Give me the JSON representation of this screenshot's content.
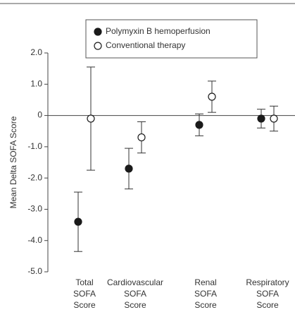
{
  "chart_data": {
    "type": "errorbar",
    "ylabel": "Mean Delta SOFA Score",
    "categories": [
      [
        "Total",
        "SOFA",
        "Score"
      ],
      [
        "Cardiovascular",
        "SOFA",
        "Score"
      ],
      [
        "Renal",
        "SOFA",
        "Score"
      ],
      [
        "Respiratory",
        "SOFA",
        "Score"
      ]
    ],
    "series": [
      {
        "name": "Polymyxin B hemoperfusion",
        "color": "#1a1a1a",
        "values": [
          -3.4,
          -1.7,
          -0.3,
          -0.1
        ],
        "errors": [
          0.95,
          0.65,
          0.35,
          0.3
        ]
      },
      {
        "name": "Conventional therapy",
        "color": "#ffffff",
        "values": [
          -0.1,
          -0.7,
          0.6,
          -0.1
        ],
        "errors": [
          1.65,
          0.5,
          0.5,
          0.4
        ]
      }
    ],
    "ylim": [
      -5,
      2
    ],
    "yticks": [
      {
        "value": 2,
        "label": "2.0"
      },
      {
        "value": 1,
        "label": "1.0"
      },
      0,
      {
        "value": -1,
        "label": "-1.0"
      },
      {
        "value": -2,
        "label": "-2.0"
      },
      {
        "value": -3,
        "label": "-3.0"
      },
      {
        "value": -4,
        "label": "-4.0"
      },
      {
        "value": -5,
        "label": "-5.0"
      }
    ],
    "legend": "top"
  }
}
